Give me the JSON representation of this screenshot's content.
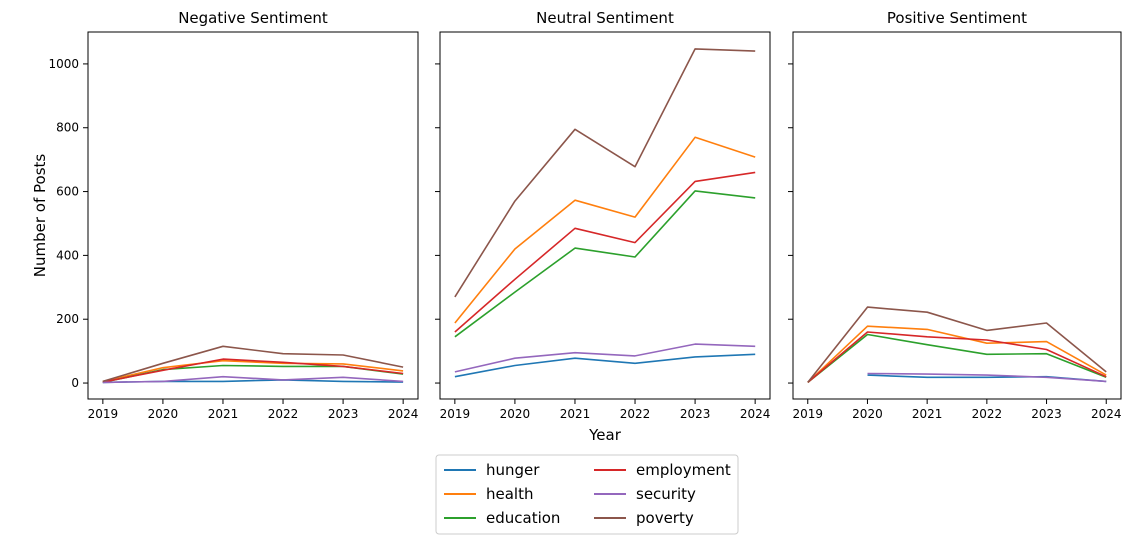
{
  "chart_data": {
    "type": "line",
    "shared": {
      "x": [
        2019,
        2020,
        2021,
        2022,
        2023,
        2024
      ],
      "xlabel": "Year",
      "ylabel": "Number of Posts",
      "ylim": [
        -50,
        1100
      ],
      "yticks": [
        0,
        200,
        400,
        600,
        800,
        1000
      ],
      "grid": false,
      "legend_placement": "bottom-center"
    },
    "legend": [
      {
        "name": "hunger",
        "color": "#1f77b4"
      },
      {
        "name": "health",
        "color": "#ff7f0e"
      },
      {
        "name": "education",
        "color": "#2ca02c"
      },
      {
        "name": "employment",
        "color": "#d62728"
      },
      {
        "name": "security",
        "color": "#9467bd"
      },
      {
        "name": "poverty",
        "color": "#8c564b"
      }
    ],
    "panels": [
      {
        "title": "Negative Sentiment",
        "series": [
          {
            "name": "hunger",
            "color": "#1f77b4",
            "values": [
              2,
              5,
              5,
              10,
              5,
              3
            ]
          },
          {
            "name": "health",
            "color": "#ff7f0e",
            "values": [
              5,
              48,
              70,
              62,
              60,
              38
            ]
          },
          {
            "name": "education",
            "color": "#2ca02c",
            "values": [
              2,
              42,
              55,
              52,
              52,
              28
            ]
          },
          {
            "name": "employment",
            "color": "#d62728",
            "values": [
              3,
              40,
              75,
              65,
              52,
              30
            ]
          },
          {
            "name": "security",
            "color": "#9467bd",
            "values": [
              2,
              5,
              20,
              10,
              18,
              5
            ]
          },
          {
            "name": "poverty",
            "color": "#8c564b",
            "values": [
              5,
              62,
              115,
              92,
              88,
              50
            ]
          }
        ]
      },
      {
        "title": "Neutral Sentiment",
        "series": [
          {
            "name": "hunger",
            "color": "#1f77b4",
            "values": [
              20,
              55,
              78,
              62,
              82,
              90
            ]
          },
          {
            "name": "health",
            "color": "#ff7f0e",
            "values": [
              188,
              420,
              573,
              520,
              770,
              708
            ]
          },
          {
            "name": "education",
            "color": "#2ca02c",
            "values": [
              145,
              285,
              423,
              395,
              602,
              580
            ]
          },
          {
            "name": "employment",
            "color": "#d62728",
            "values": [
              160,
              325,
              485,
              440,
              632,
              660
            ]
          },
          {
            "name": "security",
            "color": "#9467bd",
            "values": [
              35,
              78,
              95,
              85,
              122,
              115
            ]
          },
          {
            "name": "poverty",
            "color": "#8c564b",
            "values": [
              270,
              570,
              795,
              678,
              1047,
              1040
            ]
          }
        ]
      },
      {
        "title": "Positive Sentiment",
        "series": [
          {
            "name": "hunger",
            "color": "#1f77b4",
            "values": [
              null,
              25,
              18,
              18,
              20,
              5
            ]
          },
          {
            "name": "health",
            "color": "#ff7f0e",
            "values": [
              2,
              178,
              168,
              125,
              130,
              25
            ]
          },
          {
            "name": "education",
            "color": "#2ca02c",
            "values": [
              2,
              152,
              120,
              90,
              92,
              18
            ]
          },
          {
            "name": "employment",
            "color": "#d62728",
            "values": [
              2,
              160,
              145,
              135,
              105,
              20
            ]
          },
          {
            "name": "security",
            "color": "#9467bd",
            "values": [
              null,
              30,
              28,
              25,
              18,
              5
            ]
          },
          {
            "name": "poverty",
            "color": "#8c564b",
            "values": [
              2,
              238,
              222,
              165,
              188,
              35
            ]
          }
        ]
      }
    ]
  }
}
